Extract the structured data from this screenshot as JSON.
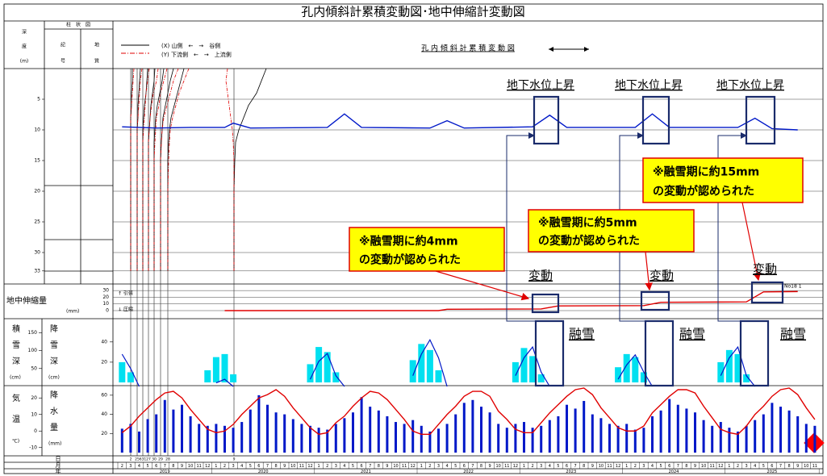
{
  "title": "孔内傾斜計累積変動図･地中伸縮計変動図",
  "header": {
    "depth": [
      "深",
      "度",
      "(m)"
    ],
    "column": "柱　状　図",
    "symbol": [
      "記",
      "号"
    ],
    "geology": [
      "地",
      "質"
    ],
    "legend_x": "(X)  山側　←　→　谷側",
    "legend_y": "(Y)  下流側　←　→　上流側",
    "chart_label": "孔 内 傾 斜 計 累 積 変 動 図"
  },
  "inclinometer": {
    "ylim": [
      0,
      35
    ],
    "depth_ticks": [
      5,
      10,
      15,
      20,
      25,
      30,
      33
    ],
    "depths": [
      0,
      2,
      4,
      6,
      8,
      10,
      12,
      15,
      20,
      25,
      30,
      33
    ],
    "profiles": [
      {
        "label": "2",
        "x": [
          1,
          1,
          0.5,
          0.5,
          0,
          0,
          0,
          0,
          0,
          0,
          0,
          0
        ],
        "y": [
          2,
          1.5,
          1,
          0.5,
          0,
          0,
          0,
          0,
          0,
          0,
          0,
          0
        ]
      },
      {
        "label": "25",
        "x": [
          2,
          1.5,
          1,
          0.5,
          0.5,
          0,
          0,
          0,
          0,
          0,
          0,
          0
        ],
        "y": [
          3,
          2,
          1.5,
          1,
          0.5,
          0,
          0,
          0,
          0,
          0,
          0,
          0
        ]
      },
      {
        "label": "631",
        "x": [
          3,
          2.5,
          2,
          1,
          0.5,
          0,
          0,
          0,
          0,
          0,
          0,
          0
        ],
        "y": [
          4,
          3,
          2,
          1.5,
          1,
          0.5,
          0,
          0,
          0,
          0,
          0,
          0
        ]
      },
      {
        "label": "27",
        "x": [
          4,
          3.5,
          2.5,
          1.5,
          1,
          0.5,
          0,
          0,
          0,
          0,
          0,
          0
        ],
        "y": [
          6,
          5,
          3,
          2,
          1,
          0.5,
          0,
          0,
          0,
          0,
          0,
          0
        ]
      },
      {
        "label": "30",
        "x": [
          6,
          5,
          3.5,
          2,
          1,
          0.5,
          0,
          0,
          0,
          0,
          0,
          0
        ],
        "y": [
          8,
          6,
          4,
          3,
          1.5,
          1,
          0.5,
          0,
          0,
          0,
          0,
          0
        ]
      },
      {
        "label": "29",
        "x": [
          8,
          6,
          4.5,
          3,
          1.5,
          1,
          0.5,
          0,
          0,
          0,
          0,
          0
        ],
        "y": [
          11,
          8,
          6,
          4,
          2,
          1,
          0.5,
          0,
          0,
          0,
          0,
          0
        ]
      },
      {
        "label": "28",
        "x": [
          10,
          8,
          6,
          4,
          2,
          1,
          0.5,
          0,
          0,
          0,
          0,
          0
        ],
        "y": [
          13,
          10,
          7,
          5,
          3,
          1.5,
          1,
          0.5,
          0,
          0,
          0,
          0
        ]
      },
      {
        "label": "9",
        "x": [
          20,
          17,
          14,
          9,
          6,
          3,
          1,
          0.5,
          0,
          0,
          0,
          0
        ],
        "y": [
          -4,
          -5,
          -4,
          -3,
          -2,
          -1,
          -0.5,
          0,
          0,
          0,
          0,
          0
        ]
      }
    ]
  },
  "groundwater": {
    "x": [
      "2019-02",
      "2019-06",
      "2019-10",
      "2020-02",
      "2020-03",
      "2020-05",
      "2021-02",
      "2021-04",
      "2021-06",
      "2022-02",
      "2022-04",
      "2022-06",
      "2023-02",
      "2023-04",
      "2023-06",
      "2024-02",
      "2024-04",
      "2024-06",
      "2025-02",
      "2025-04",
      "2025-06",
      "2025-09"
    ],
    "values": [
      9.5,
      9.7,
      9.6,
      9.6,
      8.9,
      9.7,
      9.6,
      7.4,
      9.6,
      9.7,
      8.5,
      9.7,
      9.5,
      7.6,
      9.6,
      9.6,
      7.4,
      9.6,
      9.6,
      8.1,
      9.8,
      10.0
    ]
  },
  "extensometer": {
    "label": "地中伸縮量",
    "unit": "(mm)",
    "tension": "↑ 引張",
    "compression": "↓ 圧縮",
    "series_label": "No18  1",
    "ylim": [
      0,
      35
    ],
    "ticks": [
      0,
      10,
      20,
      30
    ],
    "x": [
      "2020-02",
      "2022-03",
      "2022-04",
      "2023-03",
      "2023-05",
      "2024-03",
      "2024-05",
      "2025-03",
      "2025-05",
      "2025-09"
    ],
    "values": [
      0,
      0,
      2,
      2.5,
      7,
      7.5,
      12.5,
      13,
      28,
      28.5
    ]
  },
  "snow": {
    "depth_label": [
      "積",
      "雪",
      "深"
    ],
    "depth_unit": "(cm)",
    "fall_label": [
      "降",
      "雪",
      "深"
    ],
    "fall_unit": "(cm)",
    "depth_ylim": [
      0,
      180
    ],
    "depth_ticks": [
      50,
      100,
      150
    ],
    "fall_ylim": [
      0,
      55
    ],
    "fall_ticks": [
      20,
      40
    ],
    "depth_winters": [
      {
        "x": [
          "2019-02",
          "2019-03",
          "2019-04"
        ],
        "values": [
          90,
          50,
          0
        ]
      },
      {
        "x": [
          "2020-01",
          "2020-02",
          "2020-03"
        ],
        "values": [
          10,
          20,
          0
        ]
      },
      {
        "x": [
          "2020-12",
          "2021-01",
          "2021-02",
          "2021-03",
          "2021-04"
        ],
        "values": [
          20,
          70,
          92,
          30,
          0
        ]
      },
      {
        "x": [
          "2021-12",
          "2022-01",
          "2022-02",
          "2022-03",
          "2022-04"
        ],
        "values": [
          30,
          90,
          130,
          80,
          0
        ]
      },
      {
        "x": [
          "2022-12",
          "2023-01",
          "2023-02",
          "2023-03",
          "2023-04"
        ],
        "values": [
          30,
          80,
          110,
          40,
          0
        ]
      },
      {
        "x": [
          "2023-12",
          "2024-01",
          "2024-02",
          "2024-03",
          "2024-04"
        ],
        "values": [
          20,
          60,
          88,
          40,
          0
        ]
      },
      {
        "x": [
          "2024-12",
          "2025-01",
          "2025-02",
          "2025-03",
          "2025-04"
        ],
        "values": [
          30,
          80,
          110,
          30,
          0
        ]
      }
    ],
    "snowfall": {
      "x": [
        "2019-02",
        "2019-03",
        "2019-12",
        "2020-01",
        "2020-02",
        "2020-03",
        "2020-12",
        "2021-01",
        "2021-02",
        "2021-03",
        "2021-12",
        "2022-01",
        "2022-02",
        "2022-03",
        "2022-12",
        "2023-01",
        "2023-02",
        "2023-03",
        "2023-12",
        "2024-01",
        "2024-02",
        "2024-03",
        "2024-12",
        "2025-01",
        "2025-02",
        "2025-03"
      ],
      "values": [
        20,
        10,
        12,
        25,
        28,
        8,
        18,
        35,
        30,
        10,
        22,
        38,
        32,
        12,
        20,
        34,
        26,
        8,
        15,
        28,
        25,
        10,
        20,
        32,
        28,
        8
      ]
    }
  },
  "weather": {
    "temp_label": [
      "気",
      "温",
      "℃)"
    ],
    "precip_label": [
      "降",
      "水",
      "量"
    ],
    "precip_unit": "(mm)",
    "temp_ylim": [
      -15,
      25
    ],
    "temp_ticks": [
      -10,
      0,
      10,
      20
    ],
    "precip_ylim": [
      0,
      70
    ],
    "precip_ticks": [
      20,
      40,
      60
    ],
    "temperature": [
      -1,
      3,
      9,
      14,
      19,
      23,
      24,
      20,
      13,
      7,
      1,
      -1,
      0,
      4,
      10,
      15,
      20,
      22,
      25,
      21,
      14,
      8,
      2,
      -2,
      -1,
      5,
      9,
      15,
      20,
      24,
      23,
      19,
      13,
      7,
      0,
      -2,
      -2,
      4,
      10,
      15,
      21,
      24,
      24,
      21,
      12,
      7,
      1,
      -1,
      -1,
      5,
      11,
      16,
      21,
      25,
      26,
      22,
      14,
      8,
      2,
      0,
      0,
      3,
      11,
      16,
      21,
      25,
      25,
      23,
      15,
      8,
      1,
      -1,
      -2,
      3,
      10,
      15,
      21,
      25,
      26,
      22,
      14,
      7
    ],
    "precipitation": [
      25,
      30,
      22,
      35,
      40,
      55,
      45,
      50,
      38,
      30,
      28,
      30,
      28,
      26,
      32,
      45,
      60,
      50,
      42,
      40,
      35,
      30,
      28,
      26,
      24,
      30,
      36,
      42,
      58,
      48,
      44,
      38,
      32,
      30,
      34,
      28,
      22,
      25,
      30,
      40,
      52,
      55,
      48,
      42,
      30,
      26,
      30,
      32,
      26,
      28,
      34,
      38,
      50,
      46,
      54,
      40,
      36,
      30,
      28,
      30,
      24,
      26,
      38,
      44,
      56,
      50,
      46,
      42,
      34,
      28,
      32,
      26,
      22,
      28,
      34,
      40,
      52,
      48,
      44,
      38,
      30,
      28
    ]
  },
  "timeline": {
    "day": "日",
    "month": "月",
    "year": "年",
    "years": [
      {
        "year": "2019",
        "months": [
          2,
          3,
          4,
          5,
          6,
          7,
          8,
          9,
          10,
          11,
          12
        ]
      },
      {
        "year": "2020",
        "months": [
          1,
          2,
          3,
          4,
          5,
          6,
          7,
          8,
          9,
          10,
          11,
          12
        ]
      },
      {
        "year": "2021",
        "months": [
          1,
          2,
          3,
          4,
          5,
          6,
          7,
          8,
          9,
          10,
          11,
          12
        ]
      },
      {
        "year": "2022",
        "months": [
          1,
          2,
          3,
          4,
          5,
          6,
          7,
          8,
          9,
          10,
          11,
          12
        ]
      },
      {
        "year": "2023",
        "months": [
          1,
          2,
          3,
          4,
          5,
          6,
          7,
          8,
          9,
          10,
          11,
          12
        ]
      },
      {
        "year": "2024",
        "months": [
          1,
          2,
          3,
          4,
          5,
          6,
          7,
          8,
          9,
          10,
          11,
          12
        ]
      },
      {
        "year": "2025",
        "months": [
          1,
          2,
          3,
          4,
          5,
          6,
          7,
          8,
          9,
          10,
          11
        ]
      }
    ]
  },
  "annotations": {
    "groundwater_rise": [
      "地下水位上昇",
      "地下水位上昇",
      "地下水位上昇"
    ],
    "callouts": [
      [
        "※融雪期に約4mm",
        "の変動が認められた"
      ],
      [
        "※融雪期に約5mm",
        "の変動が認められた"
      ],
      [
        "※融雪期に約15mm",
        "の変動が認められた"
      ]
    ],
    "change": [
      "変動",
      "変動",
      "変動"
    ],
    "snowmelt": [
      "融雪",
      "融雪",
      "融雪"
    ]
  }
}
